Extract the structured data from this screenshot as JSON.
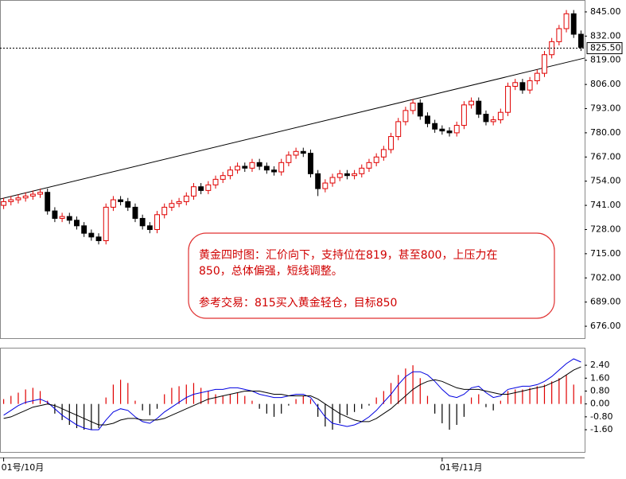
{
  "chart_data": [
    {
      "type": "candlestick",
      "categories": [
        "01号/10月",
        null,
        null,
        null,
        null,
        null,
        null,
        null,
        null,
        null,
        null,
        null,
        null,
        null,
        null,
        null,
        null,
        null,
        null,
        null,
        null,
        null,
        null,
        null,
        null,
        null,
        null,
        null,
        null,
        null,
        null,
        null,
        null,
        null,
        null,
        null,
        null,
        null,
        null,
        null,
        null,
        null,
        null,
        null,
        null,
        null,
        null,
        null,
        null,
        null,
        null,
        null,
        null,
        null,
        null,
        null,
        null,
        null,
        null,
        null,
        "01号/11月",
        null,
        null,
        null,
        null,
        null,
        null,
        null,
        null,
        null,
        null,
        null,
        null,
        null,
        null,
        null,
        null,
        null,
        null,
        null
      ],
      "open": [
        741,
        743,
        744,
        745,
        746,
        747,
        748,
        738,
        734,
        735,
        733,
        730,
        726,
        724,
        722,
        740,
        744,
        743,
        740,
        734,
        730,
        728,
        736,
        740,
        742,
        743,
        746,
        751,
        749,
        752,
        755,
        757,
        760,
        762,
        761,
        764,
        762,
        760,
        759,
        764,
        768,
        770,
        769,
        758,
        750,
        753,
        756,
        758,
        757,
        758,
        761,
        764,
        767,
        771,
        778,
        786,
        792,
        796,
        789,
        785,
        782,
        781,
        780,
        784,
        795,
        797,
        790,
        786,
        787,
        791,
        805,
        807,
        803,
        808,
        812,
        822,
        829,
        836,
        844,
        833
      ],
      "high": [
        745,
        746,
        747,
        748,
        749,
        750,
        750,
        740,
        737,
        737,
        735,
        732,
        728,
        726,
        742,
        746,
        746,
        745,
        742,
        736,
        732,
        738,
        742,
        744,
        745,
        748,
        753,
        753,
        754,
        757,
        759,
        762,
        764,
        764,
        766,
        766,
        764,
        762,
        766,
        770,
        772,
        772,
        771,
        760,
        755,
        758,
        760,
        760,
        760,
        763,
        766,
        769,
        773,
        780,
        788,
        794,
        798,
        798,
        791,
        787,
        784,
        783,
        786,
        797,
        799,
        799,
        792,
        789,
        793,
        807,
        809,
        809,
        810,
        814,
        824,
        831,
        838,
        846,
        846,
        835
      ],
      "low": [
        739,
        741,
        742,
        743,
        744,
        745,
        736,
        732,
        732,
        731,
        728,
        724,
        722,
        720,
        720,
        738,
        741,
        738,
        732,
        728,
        726,
        726,
        734,
        738,
        740,
        741,
        744,
        747,
        747,
        750,
        753,
        755,
        758,
        759,
        759,
        760,
        758,
        757,
        757,
        762,
        766,
        767,
        756,
        746,
        748,
        751,
        754,
        755,
        755,
        756,
        759,
        762,
        765,
        769,
        776,
        784,
        790,
        787,
        783,
        780,
        779,
        778,
        778,
        782,
        793,
        788,
        784,
        784,
        785,
        789,
        803,
        801,
        801,
        806,
        810,
        820,
        827,
        834,
        831,
        824
      ],
      "close": [
        743,
        744,
        745,
        746,
        747,
        748,
        738,
        734,
        735,
        733,
        730,
        726,
        724,
        722,
        740,
        744,
        743,
        740,
        734,
        730,
        728,
        736,
        740,
        742,
        743,
        746,
        751,
        749,
        752,
        755,
        757,
        760,
        762,
        761,
        764,
        762,
        760,
        759,
        764,
        768,
        770,
        769,
        758,
        750,
        753,
        756,
        758,
        757,
        758,
        761,
        764,
        767,
        771,
        778,
        786,
        792,
        796,
        789,
        785,
        782,
        781,
        780,
        784,
        795,
        797,
        790,
        786,
        787,
        791,
        805,
        807,
        803,
        808,
        812,
        822,
        829,
        836,
        844,
        833,
        826
      ],
      "up_color": "#e00000",
      "down_color": "#000000",
      "ylim": [
        669.6,
        851.4
      ],
      "yticks": [
        {
          "value": 845,
          "label": "845.00"
        },
        {
          "value": 832,
          "label": "832.00"
        },
        {
          "value": 819,
          "label": "819.00"
        },
        {
          "value": 806,
          "label": "806.00"
        },
        {
          "value": 793,
          "label": "793.00"
        },
        {
          "value": 780,
          "label": "780.00"
        },
        {
          "value": 767,
          "label": "767.00"
        },
        {
          "value": 754,
          "label": "754.00"
        },
        {
          "value": 741,
          "label": "741.00"
        },
        {
          "value": 728,
          "label": "728.00"
        },
        {
          "value": 715,
          "label": "715.00"
        },
        {
          "value": 702,
          "label": "702.00"
        },
        {
          "value": 689,
          "label": "689.00"
        },
        {
          "value": 676,
          "label": "676.00"
        }
      ],
      "current_price": {
        "value": 825.5,
        "label": "825.50"
      },
      "trend_line": [
        744.4,
        820.2
      ],
      "annotation": [
        "黄金四时图：汇价向下，支持位在819，甚至800，上压力在",
        "850，总体偏强，短线调整。",
        "参考交易：815买入黄金轻仓，目标850"
      ]
    },
    {
      "type": "macd",
      "histogram": [
        0.3,
        0.5,
        0.7,
        0.9,
        1.0,
        0.8,
        0.2,
        -0.6,
        -1.0,
        -1.3,
        -1.5,
        -1.6,
        -1.6,
        -1.5,
        0.4,
        1.2,
        1.5,
        1.3,
        0.2,
        -0.4,
        -0.7,
        -0.3,
        0.6,
        1.0,
        1.1,
        1.2,
        1.3,
        1.0,
        0.8,
        0.6,
        0.5,
        0.6,
        0.7,
        0.5,
        0.2,
        -0.3,
        -0.6,
        -0.8,
        -0.6,
        -0.1,
        0.3,
        0.5,
        0.3,
        -0.8,
        -1.4,
        -1.6,
        -1.2,
        -0.7,
        -0.5,
        -0.3,
        -0.1,
        0.4,
        0.8,
        1.3,
        1.8,
        2.2,
        2.4,
        1.6,
        0.5,
        -0.6,
        -1.2,
        -1.6,
        -1.3,
        -0.8,
        0.4,
        0.6,
        -0.2,
        -0.4,
        0.2,
        0.8,
        0.9,
        0.9,
        1.0,
        1.1,
        1.2,
        1.4,
        1.6,
        1.8,
        1.2,
        0.5
      ],
      "pos_color": "#e00000",
      "neg_color": "#000000",
      "series": [
        {
          "color": "#0000e0",
          "values": [
            -0.7,
            -0.4,
            -0.1,
            0.1,
            0.2,
            0.3,
            0.1,
            -0.3,
            -0.7,
            -1.0,
            -1.3,
            -1.5,
            -1.6,
            -1.6,
            -1.0,
            -0.5,
            -0.3,
            -0.4,
            -0.8,
            -1.1,
            -1.2,
            -0.9,
            -0.5,
            -0.2,
            0.1,
            0.4,
            0.6,
            0.7,
            0.8,
            0.9,
            0.9,
            1.0,
            1.0,
            0.9,
            0.8,
            0.6,
            0.5,
            0.4,
            0.4,
            0.5,
            0.6,
            0.6,
            0.4,
            -0.2,
            -0.8,
            -1.2,
            -1.3,
            -1.4,
            -1.3,
            -1.1,
            -0.8,
            -0.4,
            0.1,
            0.6,
            1.2,
            1.7,
            2.0,
            2.0,
            1.8,
            1.4,
            0.9,
            0.5,
            0.4,
            0.6,
            1.0,
            1.1,
            0.7,
            0.4,
            0.5,
            0.9,
            1.0,
            1.1,
            1.1,
            1.2,
            1.4,
            1.7,
            2.1,
            2.5,
            2.8,
            2.6
          ]
        },
        {
          "color": "#000000",
          "values": [
            -0.9,
            -0.8,
            -0.6,
            -0.4,
            -0.2,
            -0.1,
            0.0,
            -0.1,
            -0.3,
            -0.5,
            -0.7,
            -0.9,
            -1.1,
            -1.3,
            -1.3,
            -1.2,
            -1.0,
            -0.9,
            -0.9,
            -1.0,
            -1.0,
            -1.0,
            -0.9,
            -0.7,
            -0.5,
            -0.3,
            -0.1,
            0.1,
            0.3,
            0.4,
            0.5,
            0.6,
            0.7,
            0.8,
            0.8,
            0.8,
            0.7,
            0.6,
            0.6,
            0.5,
            0.5,
            0.5,
            0.5,
            0.3,
            0.0,
            -0.3,
            -0.6,
            -0.8,
            -1.0,
            -1.1,
            -1.1,
            -0.9,
            -0.6,
            -0.3,
            0.1,
            0.5,
            0.9,
            1.2,
            1.4,
            1.5,
            1.4,
            1.2,
            1.0,
            0.9,
            0.9,
            0.9,
            0.8,
            0.7,
            0.6,
            0.6,
            0.7,
            0.8,
            0.9,
            1.0,
            1.1,
            1.3,
            1.5,
            1.8,
            2.1,
            2.3
          ]
        }
      ],
      "ylim": [
        -2.98,
        3.49
      ],
      "yticks": [
        {
          "value": 2.4,
          "label": "2.40"
        },
        {
          "value": 1.6,
          "label": "1.60"
        },
        {
          "value": 0.8,
          "label": "0.80"
        },
        {
          "value": 0,
          "label": "0.00"
        },
        {
          "value": -0.8,
          "label": "-0.80"
        },
        {
          "value": -1.6,
          "label": "-1.60"
        }
      ]
    }
  ]
}
